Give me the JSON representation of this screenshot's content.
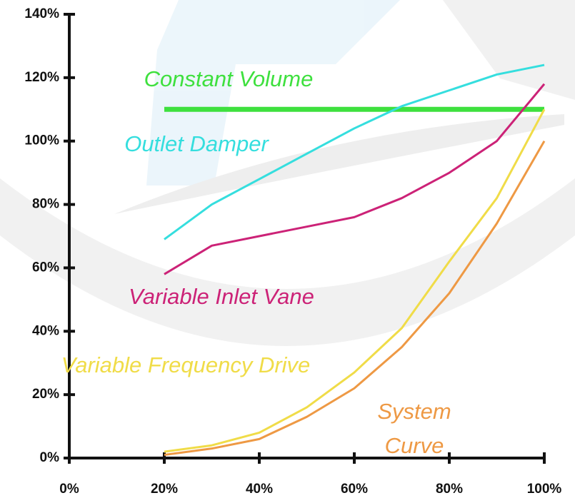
{
  "chart_data": {
    "type": "line",
    "x": [
      20,
      30,
      40,
      50,
      60,
      70,
      80,
      90,
      100
    ],
    "series": [
      {
        "name": "Constant Volume",
        "color": "#3ee03e",
        "values": [
          110,
          110,
          110,
          110,
          110,
          110,
          110,
          110,
          110
        ]
      },
      {
        "name": "Outlet Damper",
        "color": "#35dede",
        "values": [
          69,
          80,
          88,
          96,
          104,
          111,
          116,
          121,
          124
        ]
      },
      {
        "name": "Variable Inlet Vane",
        "color": "#cc2277",
        "values": [
          58,
          67,
          70,
          73,
          76,
          82,
          90,
          100,
          118
        ]
      },
      {
        "name": "Variable Frequency Drive",
        "color": "#f0dc48",
        "values": [
          2,
          4,
          8,
          16,
          27,
          41,
          62,
          82,
          110
        ]
      },
      {
        "name": "System Curve",
        "color": "#ee9944",
        "values": [
          1,
          3,
          6,
          13,
          22,
          35,
          52,
          74,
          100
        ]
      }
    ],
    "xlim": [
      0,
      100
    ],
    "xticks": [
      {
        "value": 0,
        "label": "0%"
      },
      {
        "value": 20,
        "label": "20%"
      },
      {
        "value": 40,
        "label": "40%"
      },
      {
        "value": 60,
        "label": "60%"
      },
      {
        "value": 80,
        "label": "80%"
      },
      {
        "value": 100,
        "label": "100%"
      }
    ],
    "ylim": [
      0,
      140
    ],
    "yticks": [
      {
        "value": 0,
        "label": "0%"
      },
      {
        "value": 20,
        "label": "20%"
      },
      {
        "value": 40,
        "label": "40%"
      },
      {
        "value": 60,
        "label": "60%"
      },
      {
        "value": 80,
        "label": "80%"
      },
      {
        "value": 100,
        "label": "100%"
      },
      {
        "value": 120,
        "label": "120%"
      },
      {
        "value": 140,
        "label": "140%"
      }
    ]
  }
}
